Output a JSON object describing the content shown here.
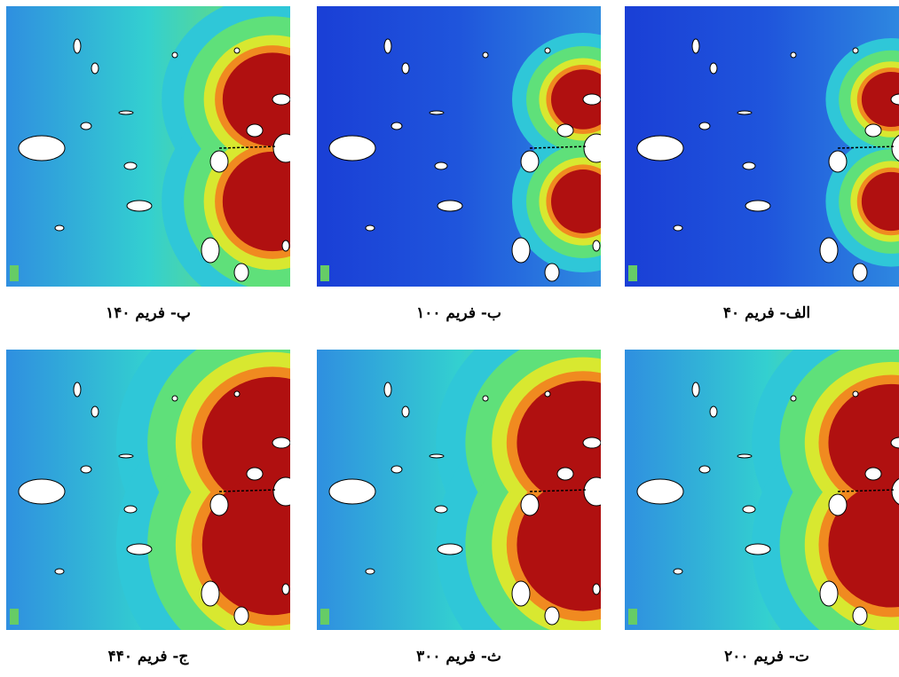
{
  "figure": {
    "panels": [
      {
        "caption": "الف- فریم ۴۰"
      },
      {
        "caption": "ب- فریم ۱۰۰"
      },
      {
        "caption": "پ- فریم ۱۴۰"
      },
      {
        "caption": "ت- فریم ۲۰۰"
      },
      {
        "caption": "ث- فریم ۳۰۰"
      },
      {
        "caption": "ج- فریم ۴۴۰"
      }
    ]
  }
}
